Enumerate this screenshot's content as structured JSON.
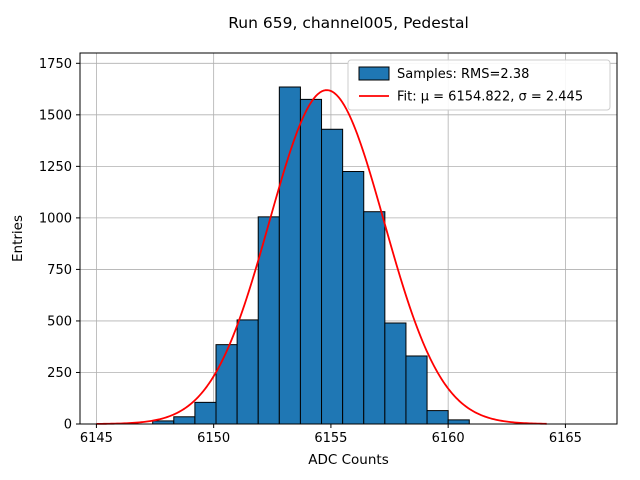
{
  "chart_data": {
    "type": "bar",
    "subtype": "histogram-with-gaussian-fit",
    "title": "Run 659, channel005, Pedestal",
    "xlabel": "ADC Counts",
    "ylabel": "Entries",
    "xlim": [
      6144.3,
      6167.2
    ],
    "ylim": [
      0,
      1800
    ],
    "xticks": [
      6145,
      6150,
      6155,
      6160,
      6165
    ],
    "yticks": [
      0,
      250,
      500,
      750,
      1000,
      1250,
      1500,
      1750
    ],
    "grid": true,
    "legend_position": "upper right",
    "bar_color": "#1f77b4",
    "bar_edge_color": "#000000",
    "fit_color": "#ff0000",
    "grid_color": "#b0b0b0",
    "bins": {
      "start": 6147.4,
      "width": 0.9,
      "counts": [
        15,
        35,
        105,
        385,
        505,
        1005,
        1635,
        1575,
        1430,
        1225,
        1030,
        490,
        330,
        65,
        20
      ]
    },
    "fit": {
      "mu": 6154.822,
      "sigma": 2.445,
      "amplitude": 1620,
      "x_start": 6145.0,
      "x_end": 6164.2
    },
    "rms": 2.38,
    "legend": [
      {
        "type": "patch",
        "label": "Samples: RMS=2.38",
        "color": "#1f77b4"
      },
      {
        "type": "line",
        "label": "Fit: μ = 6154.822, σ = 2.445",
        "color": "#ff0000"
      }
    ]
  }
}
